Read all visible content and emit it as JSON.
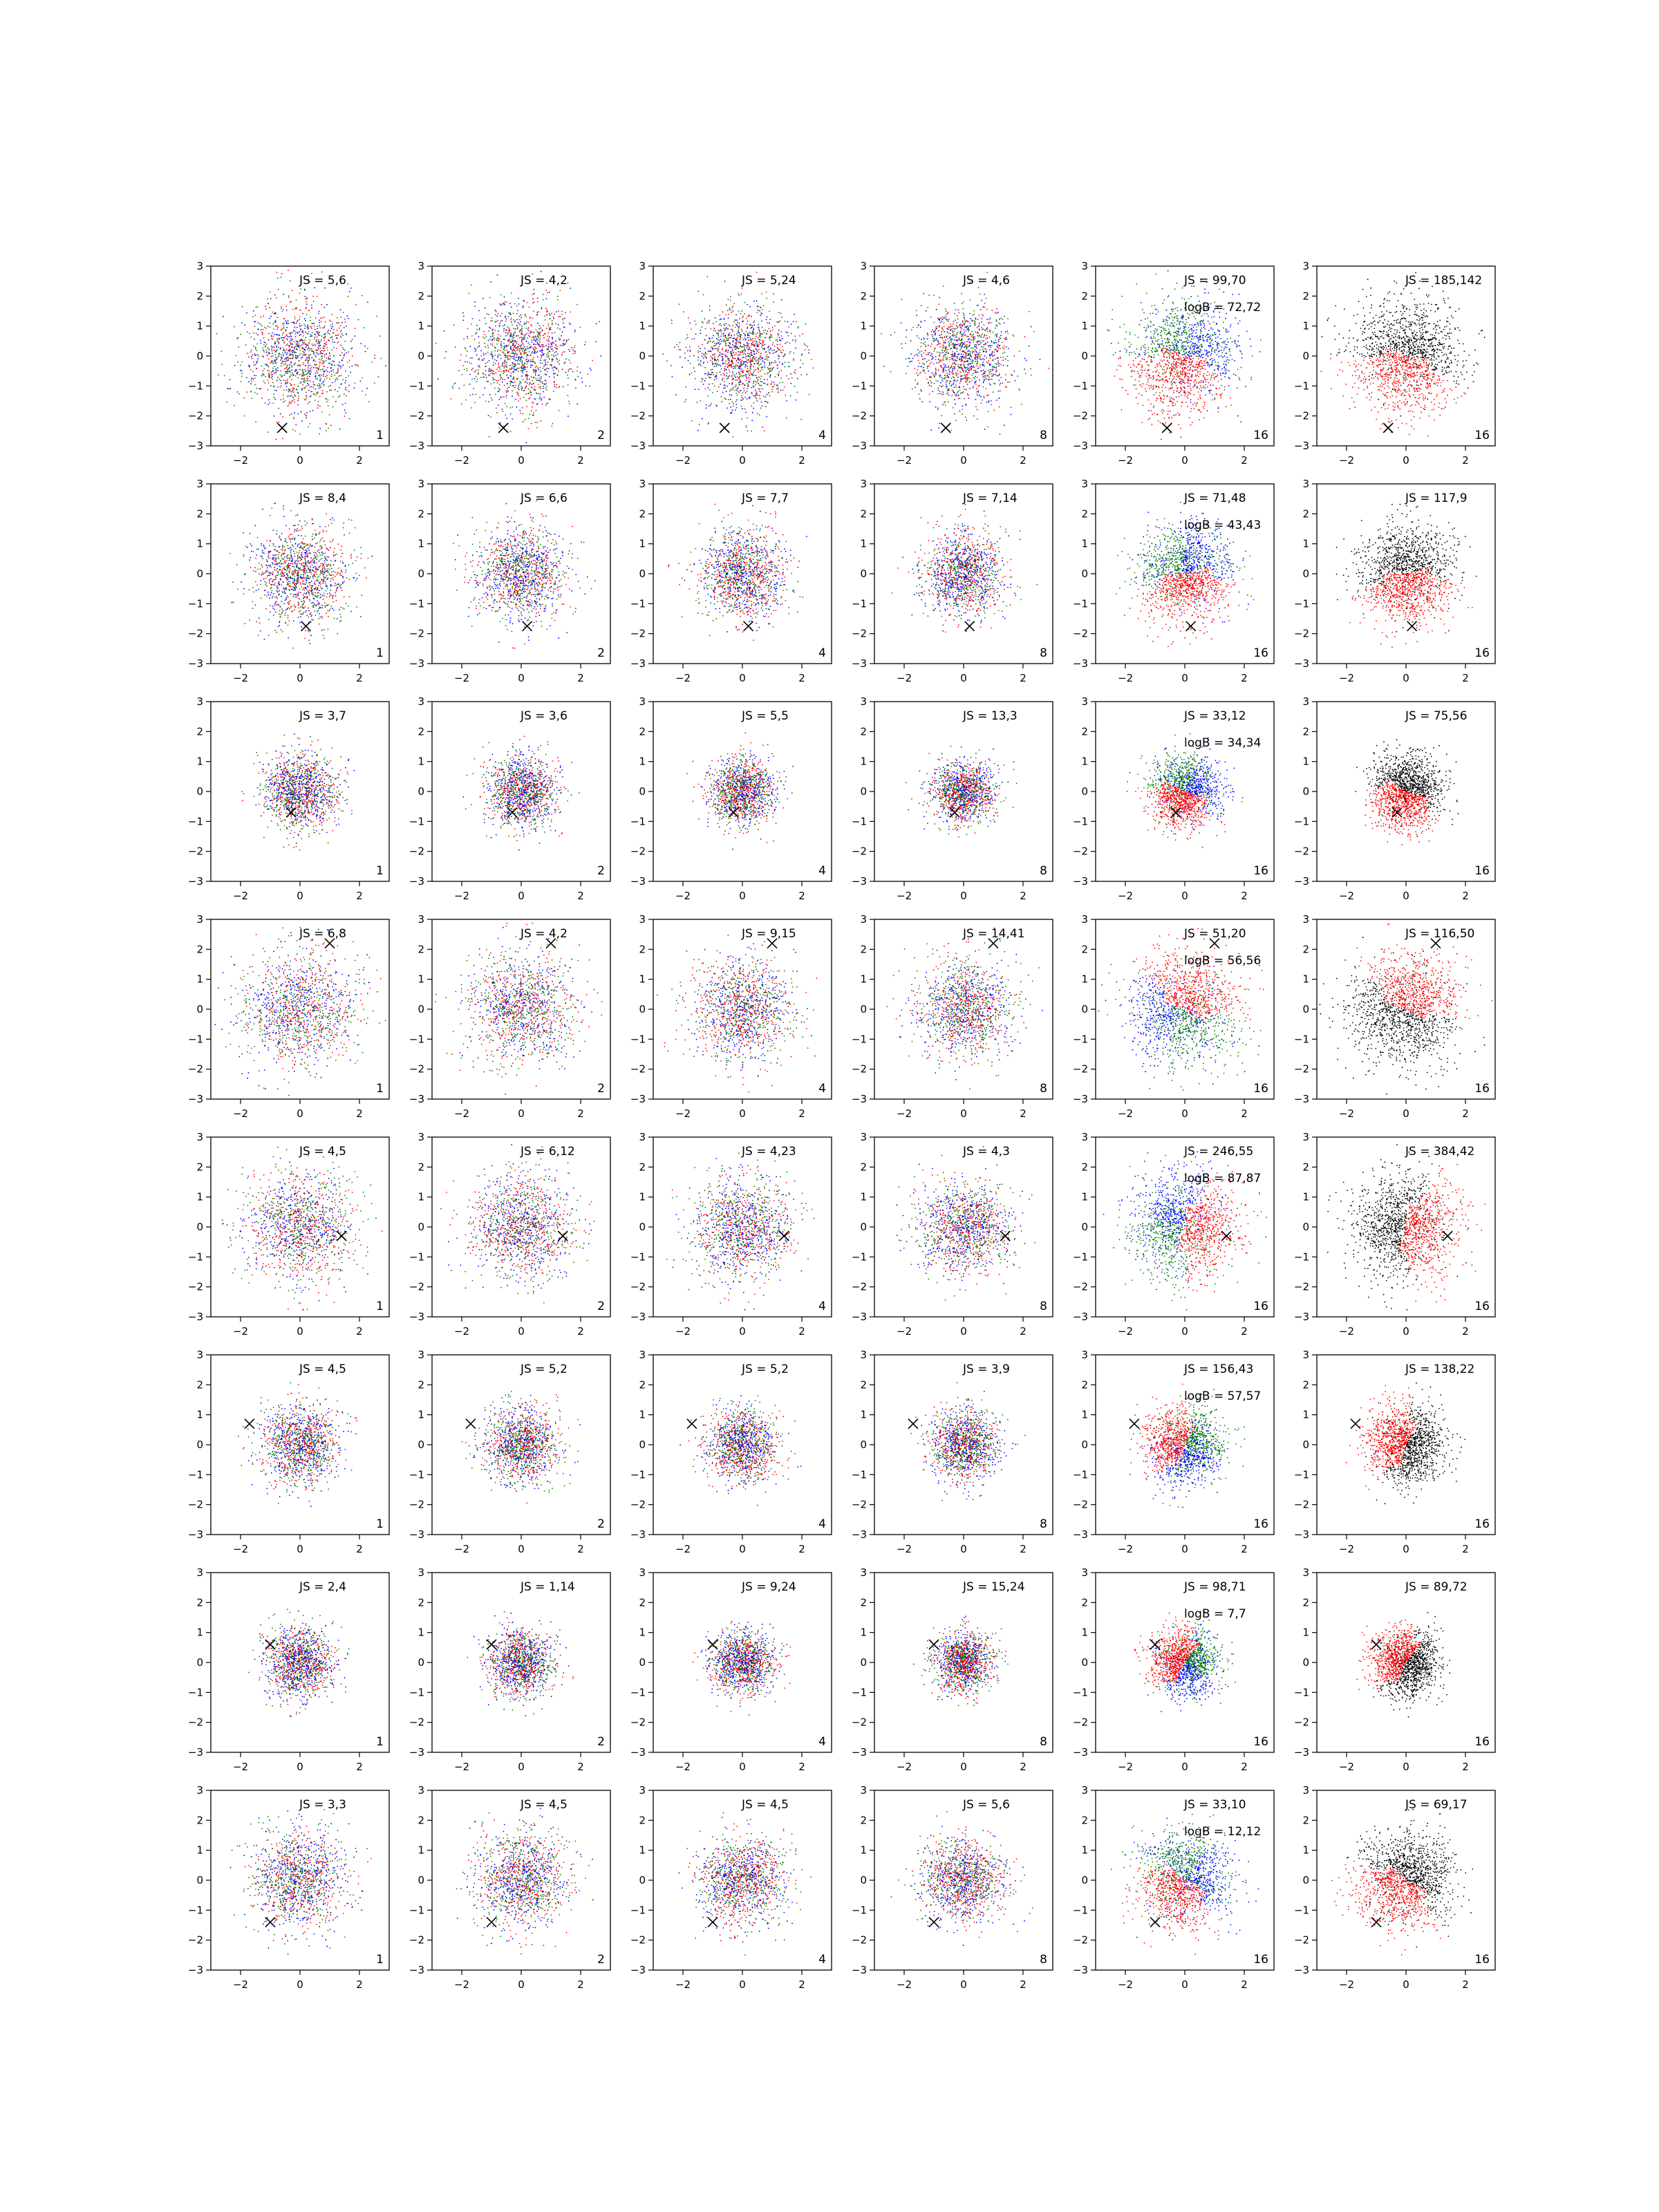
{
  "chart_data": {
    "type": "scatter",
    "layout": {
      "rows": 8,
      "cols": 6
    },
    "axes": {
      "xlim": [
        -3,
        3
      ],
      "ylim": [
        -3,
        3
      ],
      "xticks": [
        -2,
        0,
        2
      ],
      "yticks": [
        -3,
        -2,
        -1,
        0,
        1,
        2,
        3
      ],
      "xtick_labels": [
        "−2",
        "0",
        "2"
      ],
      "ytick_labels": [
        "−3",
        "−2",
        "−1",
        "0",
        "1",
        "2",
        "3"
      ],
      "grid": false
    },
    "colors": {
      "red": "#ff0000",
      "green": "#008000",
      "blue": "#0000ff",
      "black": "#000000",
      "marker": "#000000"
    },
    "panel_labels": [
      "1",
      "2",
      "4",
      "8",
      "16",
      "16"
    ],
    "rows": [
      {
        "marker": [
          -0.6,
          -2.4
        ],
        "panels": [
          {
            "js": "JS = 5,6"
          },
          {
            "js": "JS = 4,2"
          },
          {
            "js": "JS = 5,24"
          },
          {
            "js": "JS = 4,6"
          },
          {
            "js": "JS = 99,70",
            "logb": "logB = 72,72"
          },
          {
            "js": "JS = 185,142"
          }
        ]
      },
      {
        "marker": [
          0.2,
          -1.75
        ],
        "panels": [
          {
            "js": "JS = 8,4"
          },
          {
            "js": "JS = 6,6"
          },
          {
            "js": "JS = 7,7"
          },
          {
            "js": "JS = 7,14"
          },
          {
            "js": "JS = 71,48",
            "logb": "logB = 43,43"
          },
          {
            "js": "JS = 117,9"
          }
        ]
      },
      {
        "marker": [
          -0.3,
          -0.7
        ],
        "panels": [
          {
            "js": "JS = 3,7"
          },
          {
            "js": "JS = 3,6"
          },
          {
            "js": "JS = 5,5"
          },
          {
            "js": "JS = 13,3"
          },
          {
            "js": "JS = 33,12",
            "logb": "logB = 34,34"
          },
          {
            "js": "JS = 75,56"
          }
        ]
      },
      {
        "marker": [
          1.0,
          2.2
        ],
        "panels": [
          {
            "js": "JS = 6,8"
          },
          {
            "js": "JS = 4,2"
          },
          {
            "js": "JS = 9,15"
          },
          {
            "js": "JS = 14,41"
          },
          {
            "js": "JS = 51,20",
            "logb": "logB = 56,56"
          },
          {
            "js": "JS = 116,50"
          }
        ]
      },
      {
        "marker": [
          1.4,
          -0.3
        ],
        "panels": [
          {
            "js": "JS = 4,5"
          },
          {
            "js": "JS = 6,12"
          },
          {
            "js": "JS = 4,23"
          },
          {
            "js": "JS = 4,3"
          },
          {
            "js": "JS = 246,55",
            "logb": "logB = 87,87"
          },
          {
            "js": "JS = 384,42"
          }
        ]
      },
      {
        "marker": [
          -1.7,
          0.7
        ],
        "panels": [
          {
            "js": "JS = 4,5"
          },
          {
            "js": "JS = 5,2"
          },
          {
            "js": "JS = 5,2"
          },
          {
            "js": "JS = 3,9"
          },
          {
            "js": "JS = 156,43",
            "logb": "logB = 57,57"
          },
          {
            "js": "JS = 138,22"
          }
        ]
      },
      {
        "marker": [
          -1.0,
          0.6
        ],
        "panels": [
          {
            "js": "JS = 2,4"
          },
          {
            "js": "JS = 1,14"
          },
          {
            "js": "JS = 9,24"
          },
          {
            "js": "JS = 15,24"
          },
          {
            "js": "JS = 98,71",
            "logb": "logB = 7,7"
          },
          {
            "js": "JS = 89,72"
          }
        ]
      },
      {
        "marker": [
          -1.0,
          -1.4
        ],
        "panels": [
          {
            "js": "JS = 3,3"
          },
          {
            "js": "JS = 4,5"
          },
          {
            "js": "JS = 4,5"
          },
          {
            "js": "JS = 5,6"
          },
          {
            "js": "JS = 33,10",
            "logb": "logB = 12,12"
          },
          {
            "js": "JS = 69,17"
          }
        ]
      }
    ]
  }
}
